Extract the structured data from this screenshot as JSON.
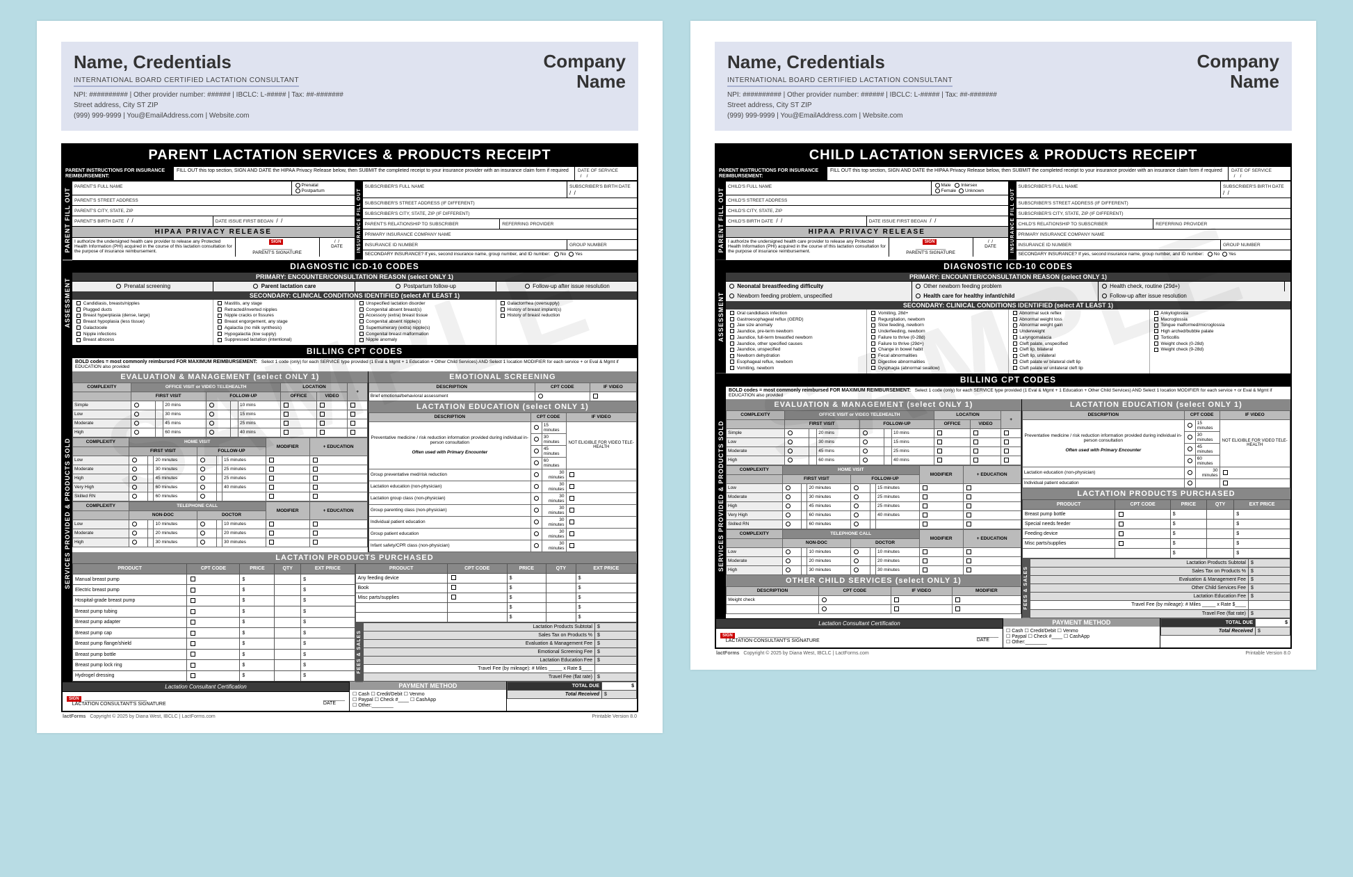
{
  "watermark": "SAMPLE",
  "letterhead": {
    "name": "Name, Credentials",
    "subtitle": "INTERNATIONAL BOARD CERTIFIED LACTATION CONSULTANT",
    "line1": "NPI: ########## | Other provider number: ###### | IBCLC: L-##### | Tax: ##-#######",
    "line2": "Street address, City ST ZIP",
    "line3": "(999) 999-9999 | You@EmailAddress.com | Website.com",
    "company1": "Company",
    "company2": "Name"
  },
  "common": {
    "instruct_label": "PARENT INSTRUCTIONS FOR INSURANCE REIMBURSEMENT:",
    "instruct_text": "FILL OUT this top section, SIGN AND DATE the HIPAA Privacy Release below, then SUBMIT the completed receipt to your insurance provider with an insurance claim form if required",
    "date_service": "DATE OF SERVICE",
    "hipaa": "HIPAA PRIVACY RELEASE",
    "hipaa_text": "I authorize the undersigned health care provider to release any Protected Health Information (PHI) acquired in the course of this lactation consultation for the purpose of insurance reimbursement.",
    "parent_sig": "PARENT'S SIGNATURE",
    "date": "DATE",
    "yes": "Yes",
    "no": "No",
    "secondary_q": "SECONDARY INSURANCE?  If yes, second insurance name, group number, and ID number:",
    "icd_title": "DIAGNOSTIC ICD-10 CODES",
    "primary_enc": "PRIMARY:  ENCOUNTER/CONSULTATION REASON  (select ONLY 1)",
    "secondary_cc": "SECONDARY:  CLINICAL CONDITIONS IDENTIFIED  (select AT LEAST 1)",
    "cpt_title": "BILLING CPT CODES",
    "bold_note": "BOLD codes = most commonly reimbursed      FOR MAXIMUM REIMBURSEMENT:",
    "bold_note_r": "Select 1 code (only) for each SERVICE type provided (1 Eval & Mgmt + 1 Education + Other Child Services) AND Select 1 location MODIFIER       for each service + or Eval & Mgmt if EDUCATION also provided",
    "eval_mgmt": "EVALUATION & MANAGEMENT  (select ONLY 1)",
    "office_visit": "OFFICE VISIT or VIDEO TELEHEALTH",
    "home_visit": "HOME VISIT",
    "tele_call": "TELEPHONE CALL",
    "complexity": "COMPLEXITY",
    "lact_edu": "LACTATION EDUCATION  (select ONLY 1)",
    "desc": "DESCRIPTION",
    "cpt": "CPT CODE",
    "ifvid": "IF VIDEO",
    "lact_prod": "LACTATION PRODUCTS PURCHASED",
    "product": "PRODUCT",
    "price": "PRICE",
    "qty": "QTY",
    "ext": "EXT PRICE",
    "cert": "Lactation Consultant Certification",
    "lc_sig": "LACTATION CONSULTANT'S SIGNATURE",
    "pay_method": "PAYMENT METHOD",
    "pay_opts": "☐ Cash   ☐ Credit/Debit   ☐ Venmo\n☐ Paypal  ☐ Check #____   ☐ CashApp\n☐ Other:________",
    "travel_mi": "Travel Fee (by mileage):  # Miles _____ x Rate $____",
    "travel_flat": "Travel Fee (flat rate)",
    "sub_prod": "Lactation Products Subtotal",
    "sales_tax": "Sales Tax on Products         %",
    "em_fee": "Evaluation & Management Fee",
    "le_fee": "Lactation Education Fee",
    "total_due": "TOTAL DUE",
    "total_rec": "Total Received",
    "vtab_parent": "PARENT FILL OUT",
    "vtab_ins": "INSURANCE FILL OUT",
    "vtab_assess": "ASSESSMENT",
    "vtab_serv": "SERVICES PROVIDED & PRODUCTS SOLD",
    "vtab_fees": "FEES & SALES",
    "copyright": "Copyright © 2025 by Diana West, IBCLC | LactForms.com",
    "version": "Printable Version 8.0",
    "logo": "lactForms",
    "first_visit": "FIRST VISIT",
    "followup": "FOLLOW-UP",
    "location": "LOCATION",
    "office": "OFFICE",
    "video": "VIDEO",
    "modifier": "MODIFIER",
    "education": "+ EDUCATION",
    "nondoc": "NON-DOC",
    "doctor": "DOCTOR"
  },
  "parent": {
    "title": "PARENT LACTATION SERVICES & PRODUCTS RECEIPT",
    "fields_left": [
      "PARENT'S FULL NAME",
      "PARENT'S STREET ADDRESS",
      "PARENT'S CITY, STATE, ZIP",
      "PARENT'S BIRTH DATE"
    ],
    "sex": [
      "Prenatal",
      "Postpartum"
    ],
    "date_issue": "DATE ISSUE FIRST BEGAN",
    "fields_right": [
      "SUBSCRIBER'S FULL NAME",
      "SUBSCRIBER'S STREET ADDRESS (if different)",
      "SUBSCRIBER'S CITY, STATE, ZIP (if different)",
      "PARENT'S RELATIONSHIP TO SUBSCRIBER",
      "PRIMARY INSURANCE COMPANY NAME",
      "INSURANCE ID NUMBER"
    ],
    "sub_bd": "SUBSCRIBER'S BIRTH DATE",
    "ref_prov": "REFERRING PROVIDER",
    "group": "GROUP NUMBER",
    "primary_opts": [
      "Prenatal screening",
      "Parent lactation care",
      "Postpartum follow-up",
      "Follow-up after issue resolution"
    ],
    "conditions": [
      [
        "Candidiasis, breasts/nipples",
        "Plugged ducts",
        "Breast hyperplasia (dense, large)",
        "Breast hypoplasia (less tissue)",
        "Galactocele",
        "Nipple infections",
        "Breast abscess"
      ],
      [
        "Mastitis, any stage",
        "Retracted/inverted nipples",
        "Nipple cracks or fissures",
        "Breast engorgement, any stage",
        "Agalactia (no milk synthesis)",
        "Hypogalactia (low supply)",
        "Suppressed lactation (intentional)"
      ],
      [
        "Unspecified lactation disorder",
        "Congenital absent breast(s)",
        "Accessory (extra) breast tissue",
        "Congenital absent nipple(s)",
        "Supernumerary (extra) nipple(s)",
        "Congenital breast malformation",
        "Nipple anomaly"
      ],
      [
        "Galactorrhea (oversupply)",
        "History of breast implant(s)",
        "History of breast reduction"
      ]
    ],
    "emo_scr": "EMOTIONAL SCREENING",
    "emo_desc": "Brief emotional/behavioral assessment",
    "edu_desc": "Preventative medicine / risk reduction information provided during individual in-person consultation",
    "edu_note": "Often used with Primary Encounter",
    "edu_rows": [
      "Group preventative med/risk reduction",
      "Lactation education (non-physician)",
      "Lactation group class (non-physician)",
      "Group parenting class (non-physician)",
      "Individual patient education",
      "Group patient education",
      "Infant safety/CPR class (non-physician)"
    ],
    "edu_mins": [
      "15 minutes",
      "30 minutes",
      "45 minutes",
      "60 minutes"
    ],
    "edu_note2": "NOT ELIGIBLE FOR VIDEO TELE-HEALTH",
    "complexity_rows_ov": [
      "Simple",
      "Low",
      "Moderate",
      "High"
    ],
    "ov_mins_fv": [
      "20 mins",
      "30 mins",
      "45 mins",
      "60 mins"
    ],
    "ov_mins_fu": [
      "10 mins",
      "15 mins",
      "25 mins",
      "40 mins"
    ],
    "complexity_rows_hv": [
      "Low",
      "Moderate",
      "High",
      "Very High",
      "Skilled RN"
    ],
    "hv_mins_fv": [
      "20 minutes",
      "30 minutes",
      "45 minutes",
      "60 minutes",
      "60 minutes"
    ],
    "hv_mins_fu": [
      "15 minutes",
      "25 minutes",
      "25 minutes",
      "40 minutes",
      ""
    ],
    "complexity_rows_tc": [
      "Low",
      "Moderate",
      "High"
    ],
    "tc_mins_fv": [
      "10 minutes",
      "20 minutes",
      "30 minutes"
    ],
    "tc_mins_fu": [
      "10 minutes",
      "20 minutes",
      "30 minutes"
    ],
    "products_left": [
      "Manual breast pump",
      "Electric breast pump",
      "Hospital-grade breast pump",
      "Breast pump tubing",
      "Breast pump adapter",
      "Breast pump cap",
      "Breast pump flange/shield",
      "Breast pump bottle",
      "Breast pump lock ring",
      "Hydrogel dressing"
    ],
    "products_right": [
      "Any feeding device",
      "Book",
      "Misc parts/supplies"
    ],
    "es_fee": "Emotional Screening Fee"
  },
  "child": {
    "title": "CHILD LACTATION SERVICES & PRODUCTS RECEIPT",
    "fields_left": [
      "CHILD'S FULL NAME",
      "CHILD'S STREET ADDRESS",
      "CHILD'S CITY, STATE, ZIP",
      "CHILD'S BIRTH DATE"
    ],
    "sex": [
      "Male",
      "Female",
      "Intersex",
      "Unknown"
    ],
    "date_issue": "DATE ISSUE FIRST BEGAN",
    "fields_right": [
      "SUBSCRIBER'S FULL NAME",
      "SUBSCRIBER'S STREET ADDRESS (if different)",
      "SUBSCRIBER'S CITY, STATE, ZIP (if different)",
      "CHILD'S RELATIONSHIP TO SUBSCRIBER",
      "PRIMARY INSURANCE COMPANY NAME",
      "INSURANCE ID NUMBER"
    ],
    "sub_bd": "SUBSCRIBER'S BIRTH DATE",
    "ref_prov": "REFERRING PROVIDER",
    "group": "GROUP NUMBER",
    "primary_opts": [
      "Neonatal breastfeeding difficulty",
      "Newborn feeding problem, unspecified",
      "Other newborn feeding problem",
      "Health care for healthy infant/child",
      "Health check, routine (29d+)",
      "Follow-up after issue resolution"
    ],
    "conditions": [
      [
        "Oral candidiasis infection",
        "Gastroesophageal reflux (GERD)",
        "Jaw size anomaly",
        "Jaundice, pre-term newborn",
        "Jaundice, full-term breastfed newborn",
        "Jaundice, other specified causes",
        "Jaundice, unspecified",
        "Newborn dehydration",
        "Esophageal reflux, newborn",
        "Vomiting, newborn"
      ],
      [
        "Vomiting, 28d+",
        "Regurgitation, newborn",
        "Slow feeding, newborn",
        "Underfeeding, newborn",
        "Failure to thrive (0-28d)",
        "Failure to thrive (29d+)",
        "Change in bowel habit",
        "Fecal abnormalities",
        "Digestive abnormalities",
        "Dysphagia (abnormal swallow)"
      ],
      [
        "Abnormal suck reflex",
        "Abnormal weight loss",
        "Abnormal weight gain",
        "Underweight",
        "Laryngomalacia",
        "Cleft palate, unspecified",
        "Cleft lip, bilateral",
        "Cleft lip, unilateral",
        "Cleft palate w/ bilateral cleft lip",
        "Cleft palate w/ unilateral cleft lip"
      ],
      [
        "Ankyloglossia",
        "Macroglossia",
        "Tongue malformed/microglossia",
        "High arched/bubble palate",
        "Torticollis",
        "Weight check (0-28d)",
        "Weight check (9-28d)"
      ]
    ],
    "edu_desc": "Preventative medicine / risk reduction information provided during individual in-person consultation",
    "edu_note": "Often used with Primary Encounter",
    "edu_rows": [
      "Lactation education (non-physician)",
      "Individual patient education"
    ],
    "edu_mins": [
      "15 minutes",
      "30 minutes",
      "45 minutes",
      "60 minutes"
    ],
    "edu_note2": "NOT ELIGIBLE FOR VIDEO TELE-HEALTH",
    "other_child": "OTHER CHILD SERVICES  (select ONLY 1)",
    "oc_row": "Weight check",
    "oc_fee": "Other Child Services Fee",
    "products": [
      "Breast pump bottle",
      "Special needs feeder",
      "Feeding device",
      "Misc parts/supplies"
    ]
  }
}
